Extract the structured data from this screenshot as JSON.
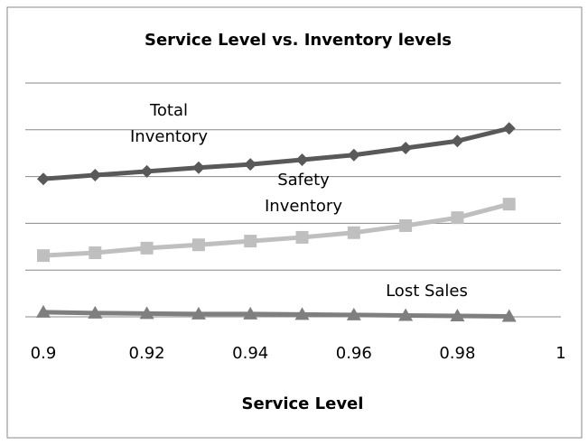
{
  "chart_data": {
    "type": "line",
    "title": "Service Level vs. Inventory levels",
    "x_label": "Service Level",
    "x": [
      0.9,
      0.91,
      0.92,
      0.93,
      0.94,
      0.95,
      0.96,
      0.97,
      0.98,
      0.99
    ],
    "xlim": [
      0.9,
      1
    ],
    "xticks": [
      0.9,
      0.92,
      0.94,
      0.96,
      0.98,
      1
    ],
    "ylim": [
      0,
      5
    ],
    "yticks": [
      0,
      1,
      2,
      3,
      4,
      5
    ],
    "grid": true,
    "series": [
      {
        "name": "Total Inventory",
        "color": "#595959",
        "marker": "diamond",
        "values": [
          2.95,
          3.03,
          3.11,
          3.19,
          3.26,
          3.36,
          3.46,
          3.61,
          3.76,
          4.03
        ]
      },
      {
        "name": "Safety Inventory",
        "color": "#bfbfbf",
        "marker": "square",
        "values": [
          1.31,
          1.37,
          1.47,
          1.54,
          1.62,
          1.7,
          1.8,
          1.95,
          2.12,
          2.41
        ]
      },
      {
        "name": "Lost Sales",
        "color": "#7f7f7f",
        "marker": "triangle",
        "values": [
          0.1,
          0.08,
          0.07,
          0.06,
          0.06,
          0.05,
          0.04,
          0.03,
          0.02,
          0.01
        ]
      }
    ]
  }
}
